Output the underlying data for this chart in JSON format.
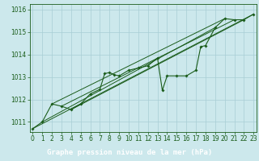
{
  "title": "Graphe pression niveau de la mer (hPa)",
  "bg_color": "#cce8ec",
  "grid_color": "#a8cdd4",
  "line_color": "#1a5c1a",
  "xlim": [
    -0.3,
    23.3
  ],
  "ylim": [
    1010.55,
    1016.25
  ],
  "xticks": [
    0,
    1,
    2,
    3,
    4,
    5,
    6,
    7,
    8,
    9,
    10,
    11,
    12,
    13,
    14,
    15,
    16,
    17,
    18,
    19,
    20,
    21,
    22,
    23
  ],
  "yticks": [
    1011,
    1012,
    1013,
    1014,
    1015,
    1016
  ],
  "series": [
    [
      0.0,
      1010.7
    ],
    [
      1.0,
      1011.0
    ],
    [
      2.0,
      1011.8
    ],
    [
      3.0,
      1011.7
    ],
    [
      4.0,
      1011.55
    ],
    [
      5.0,
      1011.8
    ],
    [
      6.0,
      1012.25
    ],
    [
      7.0,
      1012.45
    ],
    [
      7.5,
      1013.15
    ],
    [
      8.0,
      1013.2
    ],
    [
      8.5,
      1013.1
    ],
    [
      9.0,
      1013.05
    ],
    [
      10.0,
      1013.3
    ],
    [
      11.0,
      1013.4
    ],
    [
      12.0,
      1013.5
    ],
    [
      13.0,
      1013.85
    ],
    [
      13.5,
      1012.4
    ],
    [
      14.0,
      1013.05
    ],
    [
      15.0,
      1013.05
    ],
    [
      16.0,
      1013.05
    ],
    [
      17.0,
      1013.3
    ],
    [
      17.5,
      1014.35
    ],
    [
      18.0,
      1014.4
    ],
    [
      19.0,
      1015.2
    ],
    [
      20.0,
      1015.6
    ],
    [
      21.0,
      1015.55
    ],
    [
      22.0,
      1015.55
    ],
    [
      23.0,
      1015.8
    ]
  ],
  "lines": [
    [
      [
        0.0,
        23.0
      ],
      [
        1010.7,
        1015.8
      ]
    ],
    [
      [
        1.0,
        19.0
      ],
      [
        1011.0,
        1015.2
      ]
    ],
    [
      [
        2.0,
        20.0
      ],
      [
        1011.8,
        1015.6
      ]
    ],
    [
      [
        3.0,
        21.0
      ],
      [
        1011.7,
        1015.55
      ]
    ],
    [
      [
        4.0,
        22.0
      ],
      [
        1011.55,
        1015.55
      ]
    ]
  ],
  "xlabel_bg": "#1a5c1a",
  "xlabel_fg": "#ffffff",
  "xlabel_fontsize": 6.5,
  "tick_fontsize": 5.5,
  "title_fontsize": 7
}
